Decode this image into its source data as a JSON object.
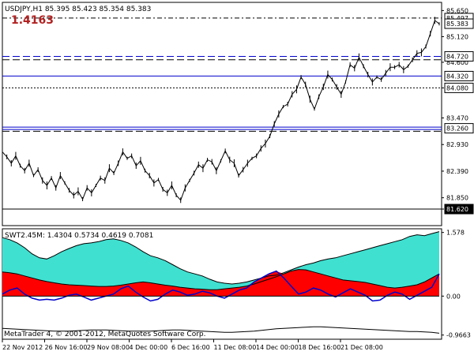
{
  "header": {
    "symbol_line": "USDJPY,H1  85.395 85.423 85.354 85.383",
    "highlight_value": "1.4163",
    "highlight_color": "#b22222"
  },
  "indicator_header": "SWT2.45M:  1.4304 0.5734 0.4619 0.7081",
  "copyright": "MetaTrader 4, © 2001-2012, MetaQuotes Software Corp.",
  "chart_data": [
    {
      "type": "line",
      "name": "price",
      "y_ticks": [
        "85.650",
        "85.120",
        "84.600",
        "84.080",
        "83.470",
        "82.930",
        "82.390",
        "81.850",
        "81.620"
      ],
      "ylim": [
        81.3,
        85.8
      ],
      "x_tick_labels": [
        "22 Nov 2012",
        "26 Nov 16:00",
        "29 Nov 08:00",
        "4 Dec 00:00",
        "6 Dec 16:00",
        "11 Dec 08:00",
        "14 Dec 00:00",
        "18 Dec 16:00",
        "21 Dec 08:00"
      ],
      "current_price": {
        "value": 85.383,
        "label": "85.383"
      },
      "levels": [
        {
          "label": "85.497",
          "value": 85.497,
          "style": "dash-dot",
          "color": "#000000",
          "boxed": true
        },
        {
          "label": "84.720",
          "value": 84.72,
          "style": "dashed",
          "color": "#0000cc",
          "boxed": true
        },
        {
          "label": "84.320",
          "value": 84.32,
          "style": "solid",
          "color": "#0000cc",
          "boxed": true
        },
        {
          "label": "84.080",
          "value": 84.08,
          "style": "dotted",
          "color": "#000000",
          "boxed": true
        },
        {
          "label": "83.260",
          "value": 83.26,
          "style": "double",
          "color": "#0000cc",
          "boxed": true
        },
        {
          "label": "81.620",
          "value": 81.62,
          "style": "solid",
          "color": "#000000",
          "boxed": true
        }
      ],
      "extra_lines": [
        {
          "value": 84.65,
          "style": "dashed",
          "color": "#000000"
        },
        {
          "value": 83.2,
          "style": "dashed",
          "color": "#000000"
        }
      ],
      "series": [
        {
          "values": [
            82.78,
            82.68,
            82.55,
            82.7,
            82.5,
            82.4,
            82.55,
            82.3,
            82.42,
            82.2,
            82.1,
            82.25,
            82.05,
            82.3,
            82.15,
            82.0,
            81.9,
            81.98,
            81.82,
            82.05,
            81.95,
            82.1,
            82.25,
            82.2,
            82.45,
            82.35,
            82.55,
            82.78,
            82.65,
            82.7,
            82.5,
            82.6,
            82.4,
            82.3,
            82.15,
            82.22,
            82.02,
            81.95,
            82.1,
            81.9,
            81.8,
            82.05,
            82.2,
            82.35,
            82.52,
            82.45,
            82.62,
            82.58,
            82.4,
            82.6,
            82.8,
            82.62,
            82.55,
            82.3,
            82.42,
            82.55,
            82.65,
            82.7,
            82.85,
            82.95,
            83.1,
            83.35,
            83.55,
            83.7,
            83.75,
            83.95,
            84.05,
            84.3,
            84.15,
            83.85,
            83.65,
            83.9,
            84.1,
            84.35,
            84.25,
            84.1,
            83.95,
            84.2,
            84.55,
            84.48,
            84.7,
            84.52,
            84.35,
            84.2,
            84.3,
            84.25,
            84.38,
            84.5,
            84.5,
            84.55,
            84.45,
            84.52,
            84.65,
            84.78,
            84.8,
            84.92,
            85.18,
            85.45,
            85.38
          ]
        }
      ]
    },
    {
      "type": "area",
      "name": "SWT2.45M",
      "y_ticks": [
        "1.578",
        "0.00",
        "-0.9663"
      ],
      "ylim": [
        -1.05,
        1.65
      ],
      "colors": {
        "cyan": "#40e0d0",
        "red": "#ff0000",
        "blue": "#0000cc"
      },
      "series": [
        {
          "values": [
            1.45,
            1.4,
            1.32,
            1.2,
            1.05,
            0.95,
            0.92,
            1.0,
            1.1,
            1.18,
            1.25,
            1.3,
            1.32,
            1.35,
            1.4,
            1.42,
            1.38,
            1.32,
            1.22,
            1.1,
            1.0,
            0.95,
            0.88,
            0.78,
            0.68,
            0.6,
            0.55,
            0.5,
            0.42,
            0.35,
            0.32,
            0.3,
            0.32,
            0.35,
            0.4,
            0.45,
            0.5,
            0.52,
            0.58,
            0.65,
            0.72,
            0.78,
            0.82,
            0.88,
            0.92,
            0.95,
            1.0,
            1.05,
            1.1,
            1.15,
            1.2,
            1.25,
            1.3,
            1.35,
            1.4,
            1.48,
            1.52,
            1.5,
            1.55,
            1.6
          ]
        },
        {
          "values": [
            0.6,
            0.58,
            0.55,
            0.5,
            0.45,
            0.4,
            0.36,
            0.33,
            0.3,
            0.28,
            0.27,
            0.26,
            0.25,
            0.24,
            0.24,
            0.25,
            0.27,
            0.3,
            0.33,
            0.35,
            0.33,
            0.3,
            0.27,
            0.25,
            0.22,
            0.2,
            0.18,
            0.17,
            0.16,
            0.16,
            0.18,
            0.2,
            0.22,
            0.25,
            0.3,
            0.36,
            0.42,
            0.48,
            0.55,
            0.62,
            0.66,
            0.65,
            0.6,
            0.55,
            0.5,
            0.45,
            0.4,
            0.38,
            0.36,
            0.34,
            0.3,
            0.26,
            0.22,
            0.2,
            0.22,
            0.25,
            0.28,
            0.35,
            0.45,
            0.55
          ]
        },
        {
          "values": [
            0.05,
            0.15,
            0.2,
            0.05,
            -0.05,
            -0.1,
            -0.08,
            -0.1,
            -0.05,
            0.02,
            0.05,
            -0.02,
            -0.1,
            -0.05,
            0.0,
            0.05,
            0.18,
            0.25,
            0.1,
            -0.02,
            -0.12,
            -0.08,
            0.05,
            0.15,
            0.1,
            0.02,
            0.05,
            0.12,
            0.08,
            0.0,
            -0.05,
            0.05,
            0.15,
            0.2,
            0.35,
            0.45,
            0.55,
            0.62,
            0.45,
            0.25,
            0.05,
            0.1,
            0.2,
            0.15,
            0.05,
            -0.02,
            0.08,
            0.18,
            0.1,
            0.02,
            -0.12,
            -0.1,
            0.02,
            0.1,
            0.05,
            -0.08,
            0.02,
            0.12,
            0.22,
            0.55
          ]
        },
        {
          "values": [
            -0.8,
            -0.81,
            -0.82,
            -0.83,
            -0.84,
            -0.85,
            -0.86,
            -0.87,
            -0.87,
            -0.87,
            -0.86,
            -0.85,
            -0.84,
            -0.84,
            -0.84,
            -0.85,
            -0.86,
            -0.87,
            -0.87,
            -0.87,
            -0.87,
            -0.86,
            -0.85,
            -0.84,
            -0.84,
            -0.85,
            -0.86,
            -0.87,
            -0.88,
            -0.89,
            -0.9,
            -0.9,
            -0.89,
            -0.88,
            -0.87,
            -0.85,
            -0.83,
            -0.81,
            -0.8,
            -0.79,
            -0.78,
            -0.77,
            -0.76,
            -0.76,
            -0.77,
            -0.78,
            -0.79,
            -0.8,
            -0.81,
            -0.82,
            -0.83,
            -0.84,
            -0.85,
            -0.86,
            -0.87,
            -0.88,
            -0.88,
            -0.89,
            -0.9,
            -0.92
          ]
        }
      ]
    }
  ]
}
